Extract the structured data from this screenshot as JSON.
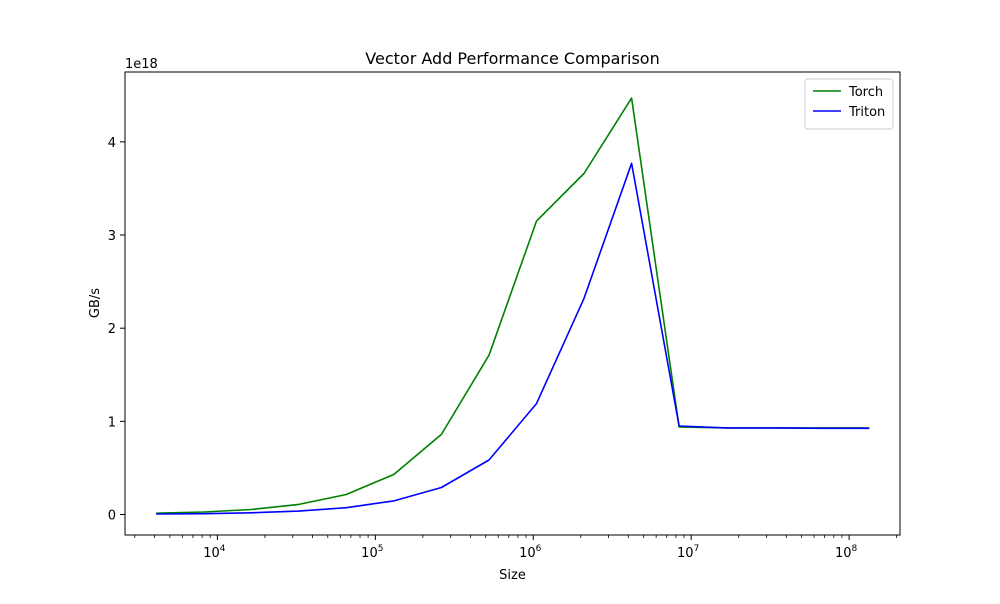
{
  "chart_data": {
    "type": "line",
    "title": "Vector Add Performance Comparison",
    "xlabel": "Size",
    "ylabel": "GB/s",
    "xscale": "log",
    "xlim": [
      2600,
      210000000
    ],
    "ylim": [
      -0.22,
      4.75
    ],
    "y_multiplier_label": "1e18",
    "x_ticks": [
      {
        "value": 10000,
        "base": "10",
        "exp": "4"
      },
      {
        "value": 100000,
        "base": "10",
        "exp": "5"
      },
      {
        "value": 1000000,
        "base": "10",
        "exp": "6"
      },
      {
        "value": 10000000,
        "base": "10",
        "exp": "7"
      },
      {
        "value": 100000000,
        "base": "10",
        "exp": "8"
      }
    ],
    "y_ticks": [
      {
        "value": 0,
        "label": "0"
      },
      {
        "value": 1,
        "label": "1"
      },
      {
        "value": 2,
        "label": "2"
      },
      {
        "value": 3,
        "label": "3"
      },
      {
        "value": 4,
        "label": "4"
      }
    ],
    "x": [
      4096,
      8192,
      16384,
      32768,
      65536,
      131072,
      262144,
      524288,
      1048576,
      2097152,
      4194304,
      8388608,
      16777216,
      33554432,
      67108864,
      134217728
    ],
    "series": [
      {
        "name": "Torch",
        "color": "#008000",
        "values": [
          0.014,
          0.027,
          0.054,
          0.108,
          0.215,
          0.43,
          0.86,
          1.71,
          3.15,
          3.66,
          4.47,
          0.94,
          0.93,
          0.93,
          0.93,
          0.93
        ]
      },
      {
        "name": "Triton",
        "color": "#0000ff",
        "values": [
          0.005,
          0.009,
          0.018,
          0.037,
          0.073,
          0.146,
          0.29,
          0.585,
          1.19,
          2.32,
          3.77,
          0.95,
          0.93,
          0.93,
          0.925,
          0.925
        ]
      }
    ],
    "legend_position": "top-right",
    "grid": false
  }
}
